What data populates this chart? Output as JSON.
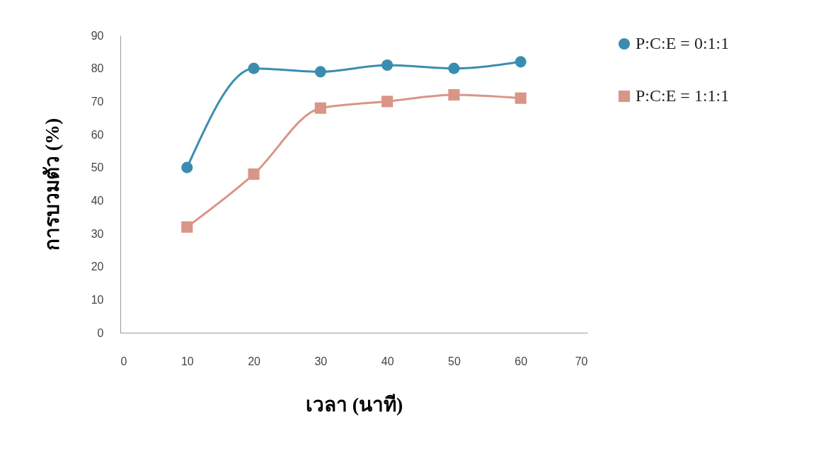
{
  "chart_data": {
    "type": "line",
    "xlabel": "เวลา (นาที)",
    "ylabel": "การบวมตัว (%)",
    "x": [
      10,
      20,
      30,
      40,
      50,
      60
    ],
    "series": [
      {
        "name": "P:C:E = 0:1:1",
        "color": "#3a8db0",
        "marker": "circle",
        "values": [
          50,
          80,
          79,
          81,
          80,
          82
        ]
      },
      {
        "name": "P:C:E = 1:1:1",
        "color": "#d99588",
        "marker": "square",
        "values": [
          32,
          48,
          68,
          70,
          72,
          71
        ]
      }
    ],
    "xlim": [
      0,
      70
    ],
    "xticks": [
      0,
      10,
      20,
      30,
      40,
      50,
      60,
      70
    ],
    "ylim": [
      0,
      90
    ],
    "yticks": [
      0,
      10,
      20,
      30,
      40,
      50,
      60,
      70,
      80,
      90
    ],
    "grid": false,
    "legend": "right"
  }
}
